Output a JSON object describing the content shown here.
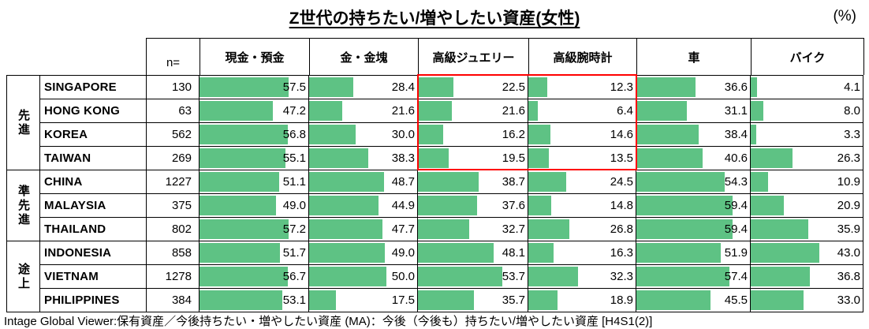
{
  "title": "Z世代の持ちたい/増やしたい資産(女性)",
  "unit_label": "(%)",
  "footer": "Intage Global Viewer:保有資産／今後持ちたい・増やしたい資産 (MA)：今後（今後も）持ちたい/増やしたい資産 [H4S1(2)]",
  "chart_data": {
    "type": "bar",
    "title": "Z世代の持ちたい/増やしたい資産(女性)",
    "unit": "%",
    "bar_color": "#5ec284",
    "highlight_color": "#ff0000",
    "scale_max": 70,
    "n_label": "n=",
    "columns": [
      "現金・預金",
      "金・金塊",
      "高級ジュエリー",
      "高級腕時計",
      "車",
      "バイク"
    ],
    "groups": [
      {
        "label": "先進",
        "rows": [
          {
            "country": "SINGAPORE",
            "n": 130,
            "values": [
              57.5,
              28.4,
              22.5,
              12.3,
              36.6,
              4.1
            ]
          },
          {
            "country": "HONG KONG",
            "n": 63,
            "values": [
              47.2,
              21.6,
              21.6,
              6.4,
              31.1,
              8.0
            ]
          },
          {
            "country": "KOREA",
            "n": 562,
            "values": [
              56.8,
              30.0,
              16.2,
              14.6,
              38.4,
              3.3
            ]
          },
          {
            "country": "TAIWAN",
            "n": 269,
            "values": [
              55.1,
              38.3,
              19.5,
              13.5,
              40.6,
              26.3
            ]
          }
        ]
      },
      {
        "label": "準先進",
        "rows": [
          {
            "country": "CHINA",
            "n": 1227,
            "values": [
              51.1,
              48.7,
              38.7,
              24.5,
              54.3,
              10.9
            ]
          },
          {
            "country": "MALAYSIA",
            "n": 375,
            "values": [
              49.0,
              44.9,
              37.6,
              14.8,
              59.4,
              20.9
            ]
          },
          {
            "country": "THAILAND",
            "n": 802,
            "values": [
              57.2,
              47.7,
              32.7,
              26.8,
              59.4,
              35.9
            ]
          }
        ]
      },
      {
        "label": "途上",
        "rows": [
          {
            "country": "INDONESIA",
            "n": 858,
            "values": [
              51.7,
              49.0,
              48.1,
              16.3,
              51.9,
              43.0
            ]
          },
          {
            "country": "VIETNAM",
            "n": 1278,
            "values": [
              56.7,
              50.0,
              53.7,
              32.3,
              57.4,
              36.8
            ]
          },
          {
            "country": "PHILIPPINES",
            "n": 384,
            "values": [
              53.1,
              17.5,
              35.7,
              18.9,
              45.5,
              33.0
            ]
          }
        ]
      }
    ],
    "highlight": {
      "columns": [
        "高級ジュエリー",
        "高級腕時計"
      ],
      "rows": [
        "SINGAPORE",
        "HONG KONG",
        "KOREA",
        "TAIWAN"
      ]
    }
  }
}
